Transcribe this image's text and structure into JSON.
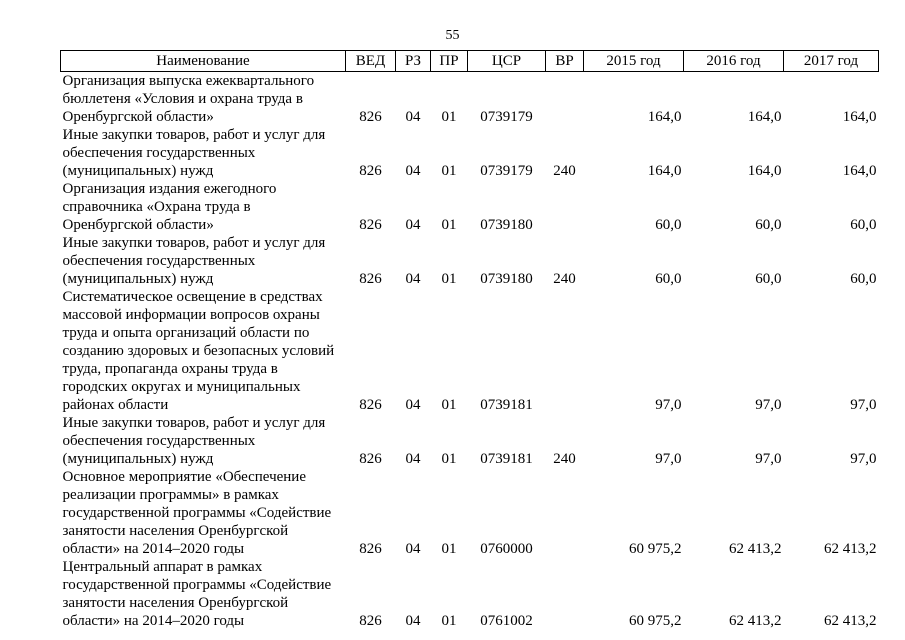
{
  "page": {
    "number": "55"
  },
  "table": {
    "headers": [
      "Наименование",
      "ВЕД",
      "РЗ",
      "ПР",
      "ЦСР",
      "ВР",
      "2015 год",
      "2016 год",
      "2017 год"
    ],
    "rows": [
      [
        "Организация выпуска ежеквартального бюллетеня «Условия и охрана труда в Оренбургской области»",
        "826",
        "04",
        "01",
        "0739179",
        "",
        "164,0",
        "164,0",
        "164,0"
      ],
      [
        "Иные закупки товаров, работ и услуг для обеспечения государственных (муниципальных) нужд",
        "826",
        "04",
        "01",
        "0739179",
        "240",
        "164,0",
        "164,0",
        "164,0"
      ],
      [
        "Организация издания ежегодного справочника «Охрана труда в Оренбургской области»",
        "826",
        "04",
        "01",
        "0739180",
        "",
        "60,0",
        "60,0",
        "60,0"
      ],
      [
        "Иные закупки товаров, работ и услуг для обеспечения государственных (муниципальных) нужд",
        "826",
        "04",
        "01",
        "0739180",
        "240",
        "60,0",
        "60,0",
        "60,0"
      ],
      [
        "Систематическое освещение в средствах массовой информации вопросов охраны труда и опыта организаций области по созданию здоровых и безопасных условий труда, пропаганда охраны труда в городских округах и муниципальных районах области",
        "826",
        "04",
        "01",
        "0739181",
        "",
        "97,0",
        "97,0",
        "97,0"
      ],
      [
        "Иные закупки товаров, работ и услуг для обеспечения государственных (муниципальных) нужд",
        "826",
        "04",
        "01",
        "0739181",
        "240",
        "97,0",
        "97,0",
        "97,0"
      ],
      [
        "Основное мероприятие «Обеспечение реализации программы» в рамках государственной программы «Содействие занятости населения Оренбургской области» на 2014–2020 годы",
        "826",
        "04",
        "01",
        "0760000",
        "",
        "60 975,2",
        "62 413,2",
        "62 413,2"
      ],
      [
        "Центральный аппарат в рамках государственной программы «Содействие занятости населения Оренбургской области» на 2014–2020 годы",
        "826",
        "04",
        "01",
        "0761002",
        "",
        "60 975,2",
        "62 413,2",
        "62 413,2"
      ]
    ]
  }
}
